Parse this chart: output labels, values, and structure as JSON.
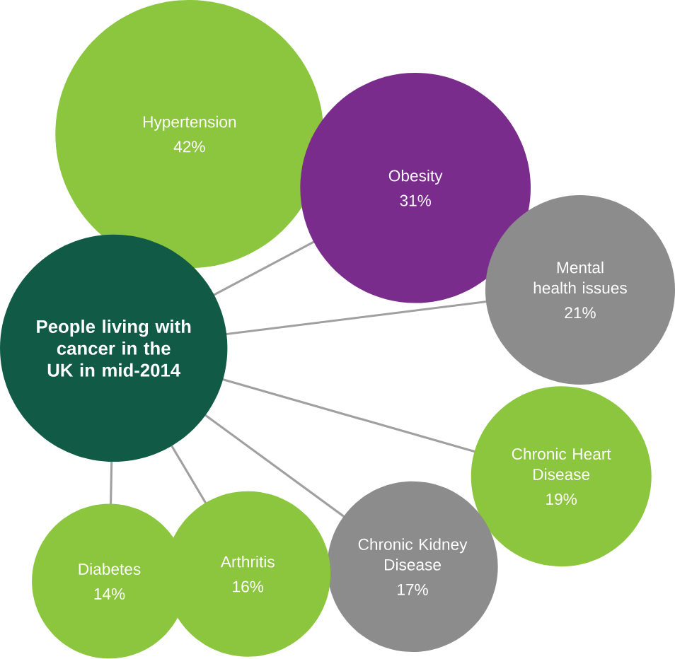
{
  "chart_data": {
    "type": "other",
    "title": "People living with cancer in the UK in mid-2014",
    "categories": [
      "Hypertension",
      "Obesity",
      "Mental health issues",
      "Chronic Heart Disease",
      "Chronic Kidney Disease",
      "Arthritis",
      "Diabetes"
    ],
    "values": [
      42,
      31,
      21,
      19,
      17,
      16,
      14
    ],
    "value_labels": [
      "42%",
      "31%",
      "21%",
      "19%",
      "17%",
      "16%",
      "14%"
    ],
    "colors": [
      "#8cc63f",
      "#7a2c8c",
      "#8c8c8c",
      "#8cc63f",
      "#8c8c8c",
      "#8cc63f",
      "#8cc63f"
    ]
  }
}
